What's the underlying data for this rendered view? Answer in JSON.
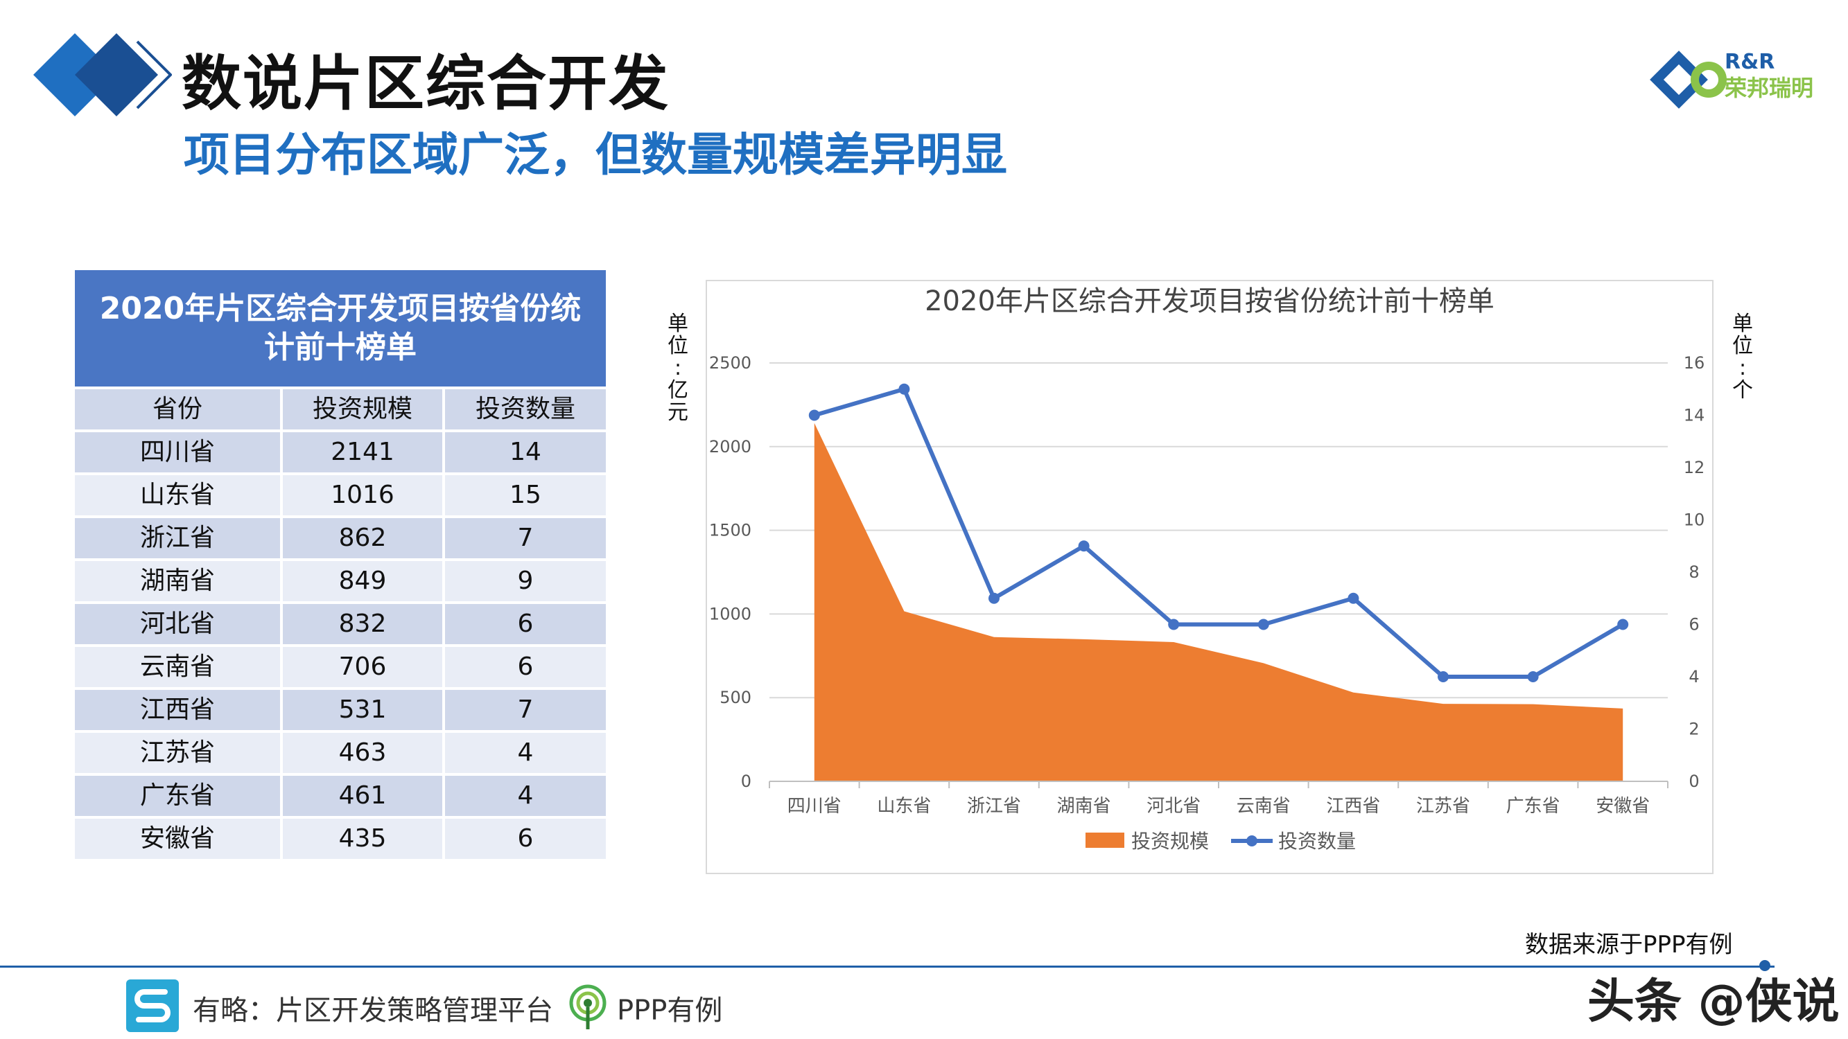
{
  "header": {
    "title": "数说片区综合开发",
    "subtitle": "项目分布区域广泛，但数量规模差异明显"
  },
  "brand": {
    "line1": "R&R",
    "line2": "荣邦瑞明",
    "colors": {
      "blue": "#1e5ea8",
      "green": "#8bc34a"
    }
  },
  "table": {
    "caption": "2020年片区综合开发项目按省份统计前十榜单",
    "headers": [
      "省份",
      "投资规模",
      "投资数量"
    ],
    "rows": [
      [
        "四川省",
        "2141",
        "14"
      ],
      [
        "山东省",
        "1016",
        "15"
      ],
      [
        "浙江省",
        "862",
        "7"
      ],
      [
        "湖南省",
        "849",
        "9"
      ],
      [
        "河北省",
        "832",
        "6"
      ],
      [
        "云南省",
        "706",
        "6"
      ],
      [
        "江西省",
        "531",
        "7"
      ],
      [
        "江苏省",
        "463",
        "4"
      ],
      [
        "广东省",
        "461",
        "4"
      ],
      [
        "安徽省",
        "435",
        "6"
      ]
    ],
    "colors": {
      "header": "#4a76c4",
      "row_dark": "#cfd7ea",
      "row_light": "#e9edf6"
    }
  },
  "units": {
    "left": [
      "单",
      "位",
      ":",
      "亿",
      "元"
    ],
    "right": [
      "单",
      "位",
      ":",
      "个"
    ]
  },
  "chart_data": {
    "type": "area",
    "title": "2020年片区综合开发项目按省份统计前十榜单",
    "categories": [
      "四川省",
      "山东省",
      "浙江省",
      "湖南省",
      "河北省",
      "云南省",
      "江西省",
      "江苏省",
      "广东省",
      "安徽省"
    ],
    "series": [
      {
        "name": "投资规模",
        "type": "area",
        "axis": "left",
        "color": "#ed7d31",
        "values": [
          2141,
          1016,
          862,
          849,
          832,
          706,
          531,
          463,
          461,
          435
        ]
      },
      {
        "name": "投资数量",
        "type": "line",
        "axis": "right",
        "color": "#4472c4",
        "values": [
          14,
          15,
          7,
          9,
          6,
          6,
          7,
          4,
          4,
          6
        ]
      }
    ],
    "y_left": {
      "range": [
        0,
        2500
      ],
      "ticks": [
        "0",
        "500",
        "1000",
        "1500",
        "2000",
        "2500"
      ]
    },
    "y_right": {
      "range": [
        0,
        16
      ],
      "ticks": [
        "0",
        "2",
        "4",
        "6",
        "8",
        "10",
        "12",
        "14",
        "16"
      ]
    },
    "grid": true,
    "legend": "bottom"
  },
  "footer": {
    "source": "数据来源于PPP有例",
    "platform": "有略：片区开发策略管理平台",
    "ppp": "PPP有例",
    "watermark": "头条 @侠说"
  }
}
